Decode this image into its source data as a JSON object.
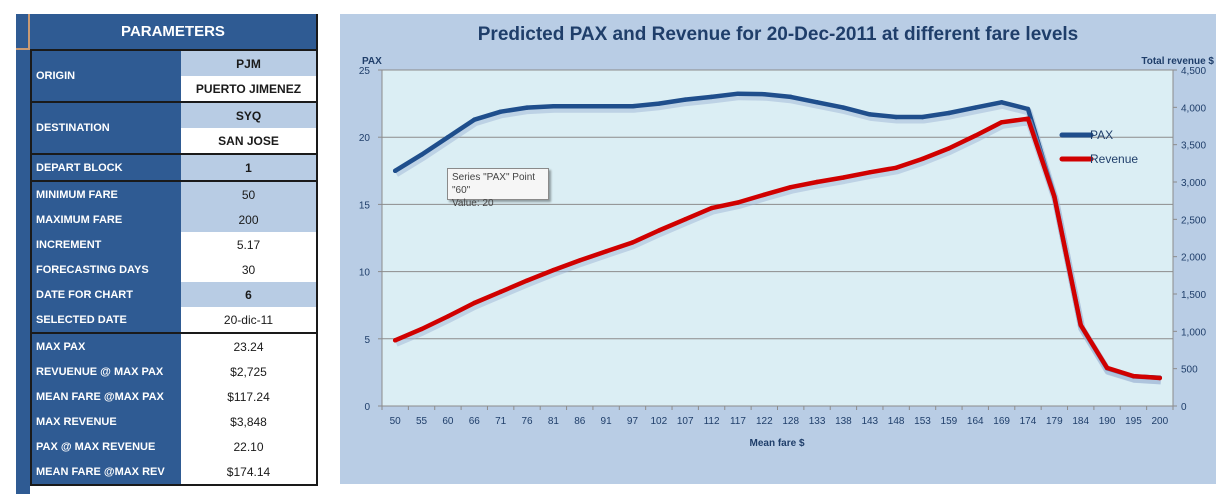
{
  "parameters": {
    "title": "PARAMETERS",
    "origin": {
      "label": "ORIGIN",
      "code": "PJM",
      "name": "PUERTO JIMENEZ"
    },
    "destination": {
      "label": "DESTINATION",
      "code": "SYQ",
      "name": "SAN JOSE"
    },
    "rows": [
      {
        "label": "DEPART BLOCK",
        "value": "1"
      },
      {
        "label": "MINIMUM FARE",
        "value": "50"
      },
      {
        "label": "MAXIMUM FARE",
        "value": "200"
      },
      {
        "label": "INCREMENT",
        "value": "5.17"
      },
      {
        "label": "FORECASTING DAYS",
        "value": "30"
      },
      {
        "label": "DATE FOR CHART",
        "value": "6"
      },
      {
        "label": "SELECTED DATE",
        "value": "20-dic-11"
      }
    ],
    "results": [
      {
        "label": "MAX PAX",
        "value": "23.24"
      },
      {
        "label": "REVUENUE @ MAX PAX",
        "value": "$2,725"
      },
      {
        "label": "MEAN FARE @MAX PAX",
        "value": "$117.24"
      },
      {
        "label": "MAX REVENUE",
        "value": "$3,848"
      },
      {
        "label": "PAX @ MAX REVENUE",
        "value": "22.10"
      },
      {
        "label": "MEAN FARE @MAX REV",
        "value": "$174.14"
      }
    ]
  },
  "tooltip": {
    "line1": "Series \"PAX\" Point \"60\"",
    "line2": "Value: 20"
  },
  "colors": {
    "pax": "#1f4e8c",
    "revenue": "#d00000",
    "plot_bg": "#dbeef4",
    "chart_bg": "#b9cde5"
  },
  "chart_data": {
    "type": "line",
    "title": "Predicted PAX and Revenue for 20-Dec-2011  at different fare levels",
    "xlabel": "Mean fare $",
    "ylabel": "PAX",
    "y2label": "Total revenue $",
    "categories": [
      "50",
      "55",
      "60",
      "66",
      "71",
      "76",
      "81",
      "86",
      "91",
      "97",
      "102",
      "107",
      "112",
      "117",
      "122",
      "128",
      "133",
      "138",
      "143",
      "148",
      "153",
      "159",
      "164",
      "169",
      "174",
      "179",
      "184",
      "190",
      "195",
      "200"
    ],
    "ylim": [
      0,
      25
    ],
    "yticks": [
      "0",
      "5",
      "10",
      "15",
      "20",
      "25"
    ],
    "y2lim": [
      0,
      4500
    ],
    "y2ticks": [
      "0",
      "500",
      "1,000",
      "1,500",
      "2,000",
      "2,500",
      "3,000",
      "3,500",
      "4,000",
      "4,500"
    ],
    "grid": true,
    "legend": "right",
    "series": [
      {
        "name": "PAX",
        "axis": "left",
        "values": [
          17.5,
          18.7,
          20.0,
          21.3,
          21.9,
          22.2,
          22.3,
          22.3,
          22.3,
          22.3,
          22.5,
          22.8,
          23.0,
          23.24,
          23.2,
          23.0,
          22.6,
          22.2,
          21.7,
          21.5,
          21.5,
          21.8,
          22.2,
          22.6,
          22.1,
          15.6,
          6.0,
          2.8,
          2.2,
          2.1
        ]
      },
      {
        "name": "Revenue",
        "axis": "right",
        "values": [
          880,
          1030,
          1200,
          1380,
          1530,
          1680,
          1820,
          1950,
          2070,
          2190,
          2350,
          2500,
          2650,
          2725,
          2830,
          2930,
          3000,
          3060,
          3130,
          3190,
          3310,
          3450,
          3620,
          3800,
          3848,
          2800,
          1085,
          510,
          400,
          375
        ]
      }
    ]
  }
}
